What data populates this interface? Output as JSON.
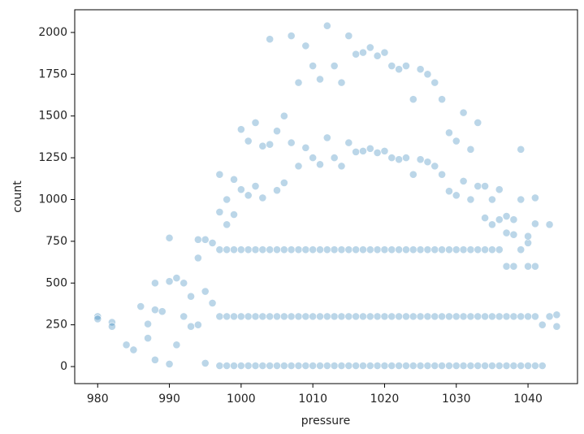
{
  "chart_data": {
    "type": "scatter",
    "xlabel": "pressure",
    "ylabel": "count",
    "color": "#1f77b4",
    "opacity": 0.3,
    "xlim": [
      976.8,
      1046.9
    ],
    "ylim": [
      -102,
      2136
    ],
    "xticks": [
      980,
      990,
      1000,
      1010,
      1020,
      1030,
      1040
    ],
    "yticks": [
      0,
      250,
      500,
      750,
      1000,
      1250,
      1500,
      1750,
      2000
    ],
    "grid": false,
    "x": [
      980,
      980,
      982,
      982,
      984,
      985,
      986,
      987,
      987,
      988,
      988,
      988,
      989,
      990,
      990,
      990,
      991,
      991,
      992,
      992,
      993,
      993,
      994,
      994,
      994,
      995,
      995,
      995,
      996,
      996,
      997,
      997,
      997,
      997,
      997,
      998,
      998,
      998,
      998,
      998,
      999,
      999,
      999,
      999,
      999,
      1000,
      1000,
      1000,
      1000,
      1000,
      1001,
      1001,
      1001,
      1001,
      1001,
      1002,
      1002,
      1002,
      1002,
      1002,
      1003,
      1003,
      1003,
      1003,
      1003,
      1004,
      1004,
      1004,
      1004,
      1004,
      1005,
      1005,
      1005,
      1005,
      1005,
      1006,
      1006,
      1006,
      1006,
      1006,
      1007,
      1007,
      1007,
      1007,
      1007,
      1008,
      1008,
      1008,
      1008,
      1008,
      1009,
      1009,
      1009,
      1009,
      1009,
      1010,
      1010,
      1010,
      1010,
      1010,
      1011,
      1011,
      1011,
      1011,
      1011,
      1012,
      1012,
      1012,
      1012,
      1012,
      1013,
      1013,
      1013,
      1013,
      1013,
      1014,
      1014,
      1014,
      1014,
      1014,
      1015,
      1015,
      1015,
      1015,
      1015,
      1016,
      1016,
      1016,
      1016,
      1016,
      1017,
      1017,
      1017,
      1017,
      1017,
      1018,
      1018,
      1018,
      1018,
      1018,
      1019,
      1019,
      1019,
      1019,
      1019,
      1020,
      1020,
      1020,
      1020,
      1020,
      1021,
      1021,
      1021,
      1021,
      1021,
      1022,
      1022,
      1022,
      1022,
      1022,
      1023,
      1023,
      1023,
      1023,
      1023,
      1024,
      1024,
      1024,
      1024,
      1024,
      1025,
      1025,
      1025,
      1025,
      1025,
      1026,
      1026,
      1026,
      1026,
      1026,
      1027,
      1027,
      1027,
      1027,
      1027,
      1028,
      1028,
      1028,
      1028,
      1028,
      1029,
      1029,
      1029,
      1029,
      1029,
      1030,
      1030,
      1030,
      1030,
      1030,
      1031,
      1031,
      1031,
      1031,
      1031,
      1032,
      1032,
      1032,
      1032,
      1032,
      1033,
      1033,
      1033,
      1033,
      1033,
      1034,
      1034,
      1034,
      1034,
      1034,
      1035,
      1035,
      1035,
      1035,
      1035,
      1036,
      1036,
      1036,
      1036,
      1036,
      1037,
      1037,
      1037,
      1037,
      1037,
      1038,
      1038,
      1038,
      1038,
      1038,
      1039,
      1039,
      1039,
      1039,
      1039,
      1040,
      1040,
      1040,
      1040,
      1040,
      1041,
      1041,
      1041,
      1041,
      1041,
      1042,
      1042,
      1043,
      1043,
      1044,
      1044
    ],
    "values": [
      300,
      285,
      265,
      240,
      130,
      100,
      360,
      255,
      170,
      500,
      340,
      40,
      330,
      770,
      510,
      15,
      530,
      130,
      500,
      300,
      420,
      240,
      760,
      650,
      250,
      760,
      450,
      20,
      740,
      380,
      5,
      300,
      700,
      925,
      1150,
      5,
      300,
      700,
      850,
      1000,
      5,
      300,
      700,
      910,
      1120,
      5,
      300,
      700,
      1060,
      1420,
      5,
      300,
      700,
      1025,
      1350,
      5,
      300,
      700,
      1080,
      1460,
      5,
      300,
      700,
      1010,
      1320,
      5,
      300,
      700,
      1330,
      1960,
      5,
      300,
      700,
      1055,
      1410,
      5,
      300,
      700,
      1100,
      1500,
      5,
      300,
      700,
      1340,
      1980,
      5,
      300,
      700,
      1200,
      1700,
      5,
      300,
      700,
      1310,
      1920,
      5,
      300,
      700,
      1250,
      1800,
      5,
      300,
      700,
      1210,
      1720,
      5,
      300,
      700,
      1370,
      2040,
      5,
      300,
      700,
      1250,
      1800,
      5,
      300,
      700,
      1200,
      1700,
      5,
      300,
      700,
      1340,
      1980,
      5,
      300,
      700,
      1285,
      1870,
      5,
      300,
      700,
      1290,
      1880,
      5,
      300,
      700,
      1305,
      1910,
      5,
      300,
      700,
      1280,
      1860,
      5,
      300,
      700,
      1290,
      1880,
      5,
      300,
      700,
      1250,
      1800,
      5,
      300,
      700,
      1240,
      1780,
      5,
      300,
      700,
      1250,
      1800,
      5,
      300,
      700,
      1150,
      1600,
      5,
      300,
      700,
      1240,
      1780,
      5,
      300,
      700,
      1225,
      1750,
      5,
      300,
      700,
      1200,
      1700,
      5,
      300,
      700,
      1150,
      1600,
      5,
      300,
      700,
      1050,
      1400,
      5,
      300,
      700,
      1025,
      1350,
      5,
      300,
      700,
      1110,
      1520,
      5,
      300,
      700,
      1000,
      1300,
      5,
      300,
      700,
      1080,
      1460,
      5,
      300,
      700,
      890,
      1080,
      5,
      300,
      700,
      850,
      1000,
      5,
      300,
      700,
      880,
      1060,
      5,
      300,
      600,
      800,
      900,
      5,
      300,
      600,
      790,
      880,
      5,
      300,
      700,
      1000,
      1300,
      5,
      300,
      600,
      740,
      780,
      5,
      300,
      600,
      855,
      1010,
      5,
      250,
      300,
      850,
      240,
      310
    ]
  }
}
